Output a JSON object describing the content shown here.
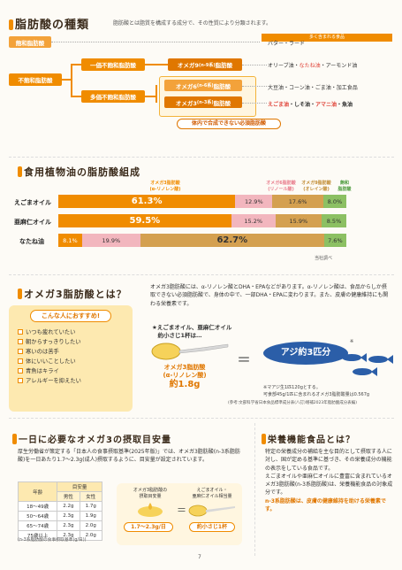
{
  "sec1": {
    "title": "脂肪酸の種類",
    "desc": "脂肪酸とは脂質を構成する成分で、その性質により分類されます。",
    "foods_header": "多く含まれる食品",
    "saturated": "飽和脂肪酸",
    "unsaturated": "不飽和脂肪酸",
    "mono": "一価不飽和脂肪酸",
    "poly": "多価不飽和脂肪酸",
    "omega9": "オメガ9",
    "omega9_sub": "(n-9系)",
    "omega9_end": "脂肪酸",
    "omega6": "オメガ6",
    "omega6_sub": "(n-6系)",
    "omega6_end": "脂肪酸",
    "omega3": "オメガ3",
    "omega3_sub": "(n-3系)",
    "omega3_end": "脂肪酸",
    "essential": "体内で合成できない必須脂肪酸",
    "food_sat": "バター・ラード",
    "food_o9_a": "オリーブ油・",
    "food_o9_b": "なたね油",
    "food_o9_c": "・アーモンド油",
    "food_o6": "大豆油・コーン油・ごま油・加工食品",
    "food_o3_a": "えごま油",
    "food_o3_b": "・しそ油・",
    "food_o3_c": "アマニ油",
    "food_o3_d": "・魚油"
  },
  "sec2": {
    "title": "食用植物油の脂肪酸組成",
    "legend": [
      {
        "l1": "オメガ3脂肪酸",
        "l2": "(α-リノレン酸)",
        "color": "#f08c00"
      },
      {
        "l1": "オメガ6脂肪酸",
        "l2": "(リノール酸)",
        "color": "#e87a8a"
      },
      {
        "l1": "オメガ9脂肪酸",
        "l2": "(オレイン酸)",
        "color": "#d4a050"
      },
      {
        "l1": "飽和",
        "l2": "脂肪酸",
        "color": "#4a9a3a"
      }
    ],
    "source": "当社調べ"
  },
  "chart_data": {
    "type": "bar",
    "categories": [
      "えごまオイル",
      "亜麻仁オイル",
      "なたね油"
    ],
    "series": [
      {
        "name": "オメガ3脂肪酸(α-リノレン酸)",
        "values": [
          61.3,
          59.5,
          8.1
        ]
      },
      {
        "name": "オメガ6脂肪酸(リノール酸)",
        "values": [
          12.9,
          15.2,
          19.9
        ]
      },
      {
        "name": "オメガ9脂肪酸(オレイン酸)",
        "values": [
          17.6,
          15.9,
          62.7
        ]
      },
      {
        "name": "飽和脂肪酸",
        "values": [
          8.0,
          8.5,
          7.6
        ]
      }
    ],
    "labels": [
      [
        "61.3%",
        "12.9%",
        "17.6%",
        "8.0%"
      ],
      [
        "59.5%",
        "15.2%",
        "15.9%",
        "8.5%"
      ],
      [
        "8.1%",
        "19.9%",
        "62.7%",
        "7.6%"
      ]
    ]
  },
  "sec3": {
    "title": "オメガ3脂肪酸とは？",
    "body": "オメガ3脂肪酸には、α-リノレン酸とDHA・EPAなどがあります。α-リノレン酸は、食品からしか摂取できない必須脂肪酸で、身体の中で、一部DHA・EPAに変わります。また、皮膚の健康維持にも関わる栄養素です。",
    "recommend": "こんな人におすすめ!",
    "checks": [
      "いつも疲れていたい",
      "朝からすっきりしたい",
      "寒いのは苦手",
      "体にいいことしたい",
      "青魚はキライ",
      "アレルギーを抑えたい"
    ],
    "spoon_title": "★えごまオイル、亜麻仁オイル\n　約小さじ1杯は…",
    "spoon_l1": "オメガ3脂肪酸",
    "spoon_l2": "(α-リノレン酸)",
    "spoon_l3": "約1.8g",
    "eq": "＝",
    "aji": "アジ約3匹分",
    "star": "※",
    "note1": "※マアジ生1匹120gとする。",
    "note2": "可食部45g/1匹に含まれるオメガ3脂肪酸量は0.567g",
    "note3": "(参考:文部科学省日本食品標準成分表(八訂)増補2023年脂肪酸成分表編)"
  },
  "sec4": {
    "title": "一日に必要なオメガ3の摂取目安量",
    "body": "厚生労働省が策定する「日本人の食事摂取基準(2025年版)」では、オメガ3脂肪酸(n-3系脂肪酸)を一日あたり1.7〜2.3g(成人)摂取するように、目安量が設定されています。",
    "table_head": [
      "年齢",
      "目安量",
      "男性",
      "女性"
    ],
    "rows": [
      [
        "18〜49歳",
        "2.2g",
        "1.7g"
      ],
      [
        "50〜64歳",
        "2.3g",
        "1.9g"
      ],
      [
        "65〜74歳",
        "2.3g",
        "2.0g"
      ],
      [
        "75歳以上",
        "2.3g",
        "2.0g"
      ]
    ],
    "table_note": "(n-3系脂肪酸の食事摂取基準(g/日))",
    "c1": "オメガ3脂肪酸の\n摂取目安量",
    "c2": "1.7〜2.3g/日",
    "eq": "＝",
    "c3": "えごまオイル・\n亜麻仁オイル相当量",
    "c4": "約小さじ1杯"
  },
  "sec5": {
    "title": "栄養機能食品とは？",
    "body1": "特定の栄養成分の補給を主な目的として摂取する人に対し、国が定める基準に基づき、その栄養成分の機能の表示をしている食品です。",
    "body2": "えごまオイルや亜麻仁オイルに豊富に含まれているオメガ3脂肪酸(n-3系脂肪酸)は、栄養機能食品の対象成分です。",
    "body3": "n-3系脂肪酸は、皮膚の健康維持を助ける栄養素です。"
  },
  "page_no": "7"
}
